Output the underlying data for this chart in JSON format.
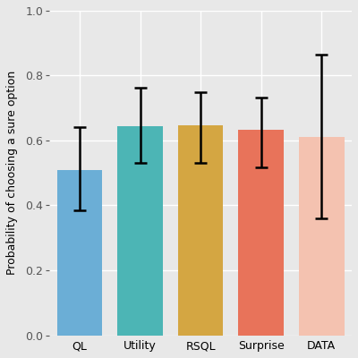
{
  "categories": [
    "QL",
    "Utility",
    "RSQL",
    "Surprise",
    "DATA"
  ],
  "values": [
    0.51,
    0.645,
    0.648,
    0.632,
    0.61
  ],
  "errors_upper": [
    0.13,
    0.118,
    0.1,
    0.1,
    0.255
  ],
  "errors_lower": [
    0.125,
    0.115,
    0.118,
    0.115,
    0.25
  ],
  "bar_colors": [
    "#6BAED6",
    "#4CB5B5",
    "#D4A642",
    "#E8735A",
    "#F4C2B0"
  ],
  "ylabel": "Probability of choosing a sure option",
  "ylim": [
    0.0,
    1.0
  ],
  "yticks": [
    0.0,
    0.2,
    0.4,
    0.6,
    0.8,
    1.0
  ],
  "background_color": "#E8E8E8",
  "grid_color": "#FFFFFF",
  "bar_width": 0.75
}
